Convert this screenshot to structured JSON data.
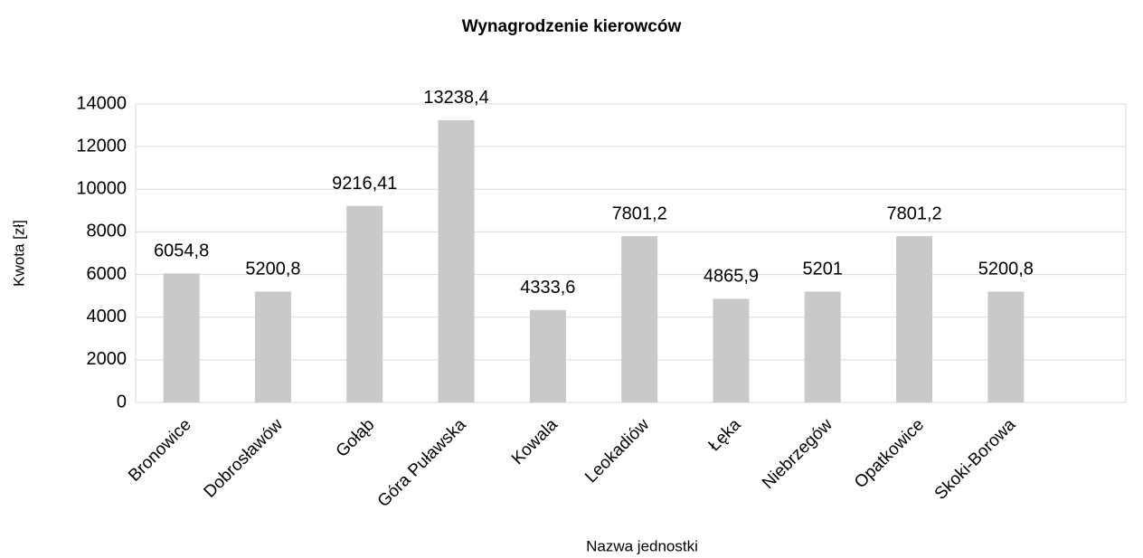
{
  "chart_data": {
    "type": "bar",
    "title": "Wynagrodzenie kierowców",
    "x_label": "Nazwa jednostki",
    "y_label": "Kwota [zł]",
    "categories": [
      "Bronowice",
      "Dobrosławów",
      "Gołąb",
      "Góra Puławska",
      "Kowala",
      "Leokadiów",
      "Łęka",
      "Niebrzegów",
      "Opatkowice",
      "Skoki-Borowa"
    ],
    "values": [
      6054.8,
      5200.8,
      9216.41,
      13238.4,
      4333.6,
      7801.2,
      4865.9,
      5201,
      7801.2,
      5200.8
    ],
    "value_labels": [
      "6054,8",
      "5200,8",
      "9216,41",
      "13238,4",
      "4333,6",
      "7801,2",
      "4865,9",
      "5201",
      "7801,2",
      "5200,8"
    ],
    "color": "#c9c9c9",
    "ylim": [
      0,
      14000
    ],
    "yticks": [
      0,
      2000,
      4000,
      6000,
      8000,
      10000,
      12000,
      14000
    ],
    "grid": true
  }
}
